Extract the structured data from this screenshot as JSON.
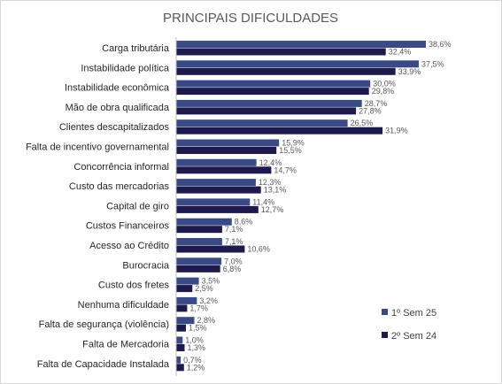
{
  "chart_data": {
    "type": "bar",
    "orientation": "horizontal",
    "title": "PRINCIPAIS DIFICULDADES",
    "xlabel": "",
    "ylabel": "",
    "xlim": [
      0,
      40
    ],
    "grid": false,
    "legend_position": "right",
    "categories": [
      "Carga tributária",
      "Instabilidade política",
      "Instabilidade econômica",
      "Mão de obra qualificada",
      "Clientes descapitalizados",
      "Falta de incentivo governamental",
      "Concorrência informal",
      "Custo das mercadorias",
      "Capital de giro",
      "Custos Financeiros",
      "Acesso ao Crédito",
      "Burocracia",
      "Custo dos fretes",
      "Nenhuma dificuldade",
      "Falta de segurança (violência)",
      "Falta de Mercadoria",
      "Falta de Capacidade Instalada"
    ],
    "series": [
      {
        "name": "1º Sem 25",
        "color": "#3a4a86",
        "values": [
          38.6,
          37.5,
          30.0,
          28.7,
          26.5,
          15.9,
          12.4,
          12.3,
          11.4,
          8.6,
          7.1,
          7.0,
          3.5,
          3.2,
          2.8,
          1.0,
          0.7
        ],
        "labels": [
          "38,6%",
          "37,5%",
          "30,0%",
          "28,7%",
          "26,5%",
          "15,9%",
          "12,4%",
          "12,3%",
          "11,4%",
          "8,6%",
          "7,1%",
          "7,0%",
          "3,5%",
          "3,2%",
          "2,8%",
          "1,0%",
          "0,7%"
        ]
      },
      {
        "name": "2º Sem 24",
        "color": "#1e1a4d",
        "values": [
          32.4,
          33.9,
          29.8,
          27.8,
          31.9,
          15.5,
          14.7,
          13.1,
          12.7,
          7.1,
          10.6,
          6.8,
          2.5,
          1.7,
          1.5,
          1.3,
          1.2
        ],
        "labels": [
          "32,4%",
          "33,9%",
          "29,8%",
          "27,8%",
          "31,9%",
          "15,5%",
          "14,7%",
          "13,1%",
          "12,7%",
          "7,1%",
          "10,6%",
          "6,8%",
          "2,5%",
          "1,7%",
          "1,5%",
          "1,3%",
          "1,2%"
        ]
      }
    ]
  }
}
